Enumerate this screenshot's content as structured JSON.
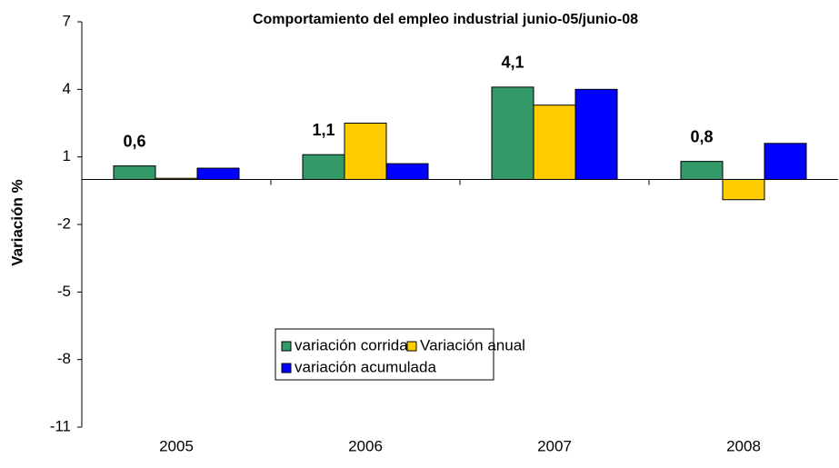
{
  "chart_data": {
    "type": "bar",
    "title": "Comportamiento del empleo industrial junio-05/junio-08",
    "y_label": "Variación %",
    "categories": [
      "2005",
      "2006",
      "2007",
      "2008"
    ],
    "series": [
      {
        "name": "variación corrida",
        "color": "#339966",
        "values": [
          0.6,
          1.1,
          4.1,
          0.8
        ],
        "value_labels": [
          "0,6",
          "1,1",
          "4,1",
          "0,8"
        ]
      },
      {
        "name": "Variación anual",
        "color": "#ffcc00",
        "values": [
          0.05,
          2.5,
          3.3,
          -0.9
        ]
      },
      {
        "name": "variación acumulada",
        "color": "#0000ff",
        "values": [
          0.5,
          0.7,
          4.0,
          1.6
        ]
      }
    ],
    "ylim": [
      -11,
      7
    ],
    "yticks": [
      -11,
      -8,
      -5,
      -2,
      1,
      4,
      7
    ]
  }
}
